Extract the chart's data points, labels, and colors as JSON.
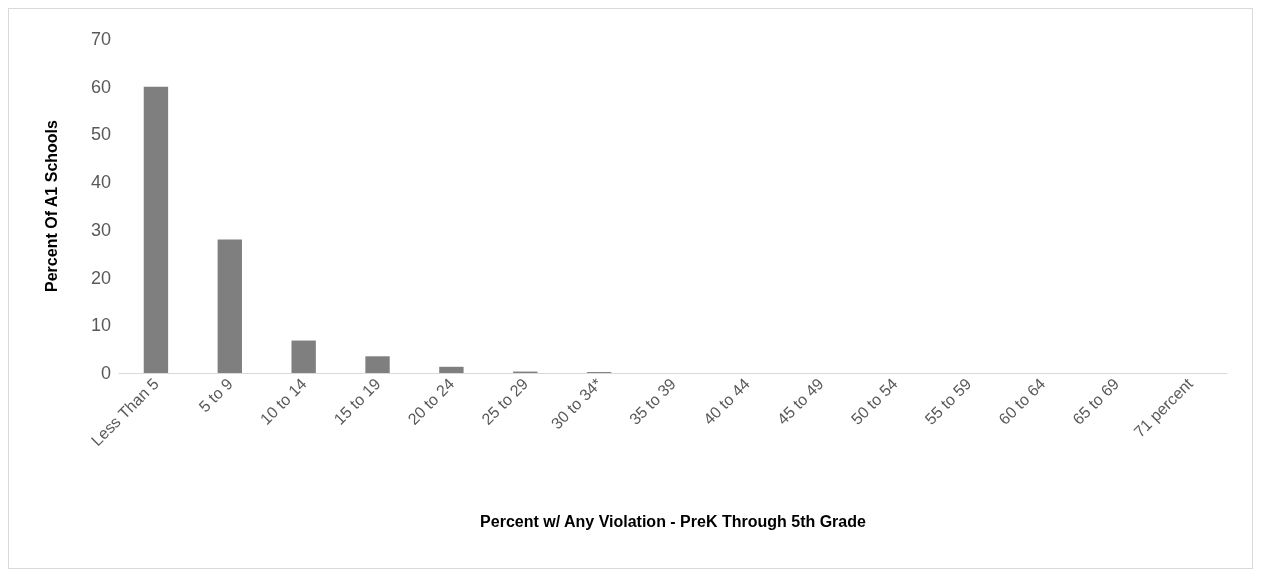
{
  "chart_data": {
    "type": "bar",
    "xlabel": "Percent w/ Any Violation - PreK Through 5th Grade",
    "ylabel": "Percent Of A1 Schools",
    "categories": [
      "Less Than 5",
      "5 to 9",
      "10 to 14",
      "15 to 19",
      "20 to 24",
      "25 to 29",
      "30 to 34*",
      "35 to 39",
      "40 to 44",
      "45 to 49",
      "50 to 54",
      "55 to 59",
      "60 to 64",
      "65 to 69",
      "71 percent"
    ],
    "values": [
      60,
      28,
      6.8,
      3.5,
      1.3,
      0.3,
      0.2,
      0,
      0,
      0,
      0,
      0,
      0,
      0,
      0
    ],
    "color": "#7f7f7f",
    "ylim": [
      0,
      70
    ],
    "yticks": [
      0,
      10,
      20,
      30,
      40,
      50,
      60,
      70
    ],
    "grid": false
  }
}
